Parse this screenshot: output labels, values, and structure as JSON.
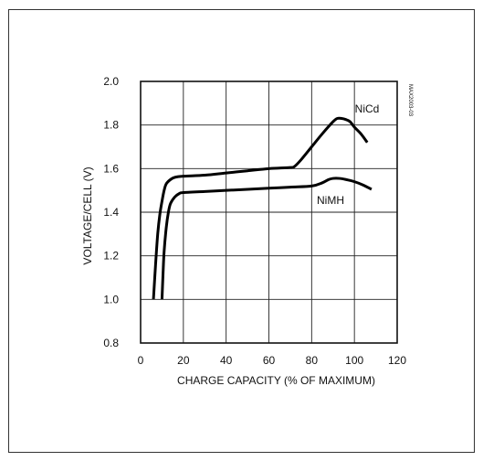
{
  "chart_data": {
    "type": "line",
    "xlabel": "CHARGE CAPACITY (% OF MAXIMUM)",
    "ylabel": "VOLTAGE/CELL (V)",
    "xlim": [
      0,
      120
    ],
    "ylim": [
      0.8,
      2.0
    ],
    "xticks": [
      "0",
      "20",
      "40",
      "60",
      "80",
      "100",
      "120"
    ],
    "yticks": [
      "0.8",
      "1.0",
      "1.2",
      "1.4",
      "1.6",
      "1.8",
      "2.0"
    ],
    "grid": true,
    "figure_code": "MAX2003-03",
    "series": [
      {
        "name": "NiCd",
        "x": [
          6,
          7,
          8,
          9,
          10,
          11,
          12,
          14,
          16,
          20,
          30,
          40,
          50,
          60,
          70,
          72,
          75,
          80,
          85,
          90,
          92,
          94,
          96,
          98,
          100,
          103,
          106
        ],
        "y": [
          1.0,
          1.16,
          1.3,
          1.39,
          1.45,
          1.5,
          1.53,
          1.55,
          1.56,
          1.565,
          1.57,
          1.58,
          1.59,
          1.6,
          1.605,
          1.61,
          1.64,
          1.7,
          1.76,
          1.815,
          1.83,
          1.83,
          1.825,
          1.815,
          1.79,
          1.76,
          1.72
        ]
      },
      {
        "name": "NiMH",
        "x": [
          10,
          10.5,
          11,
          12,
          13,
          14,
          16,
          18,
          20,
          30,
          40,
          50,
          60,
          70,
          80,
          85,
          88,
          90,
          93,
          96,
          100,
          104,
          108
        ],
        "y": [
          1.0,
          1.12,
          1.22,
          1.33,
          1.4,
          1.44,
          1.47,
          1.485,
          1.49,
          1.495,
          1.5,
          1.505,
          1.51,
          1.515,
          1.52,
          1.535,
          1.55,
          1.555,
          1.555,
          1.55,
          1.54,
          1.525,
          1.505
        ]
      }
    ]
  }
}
